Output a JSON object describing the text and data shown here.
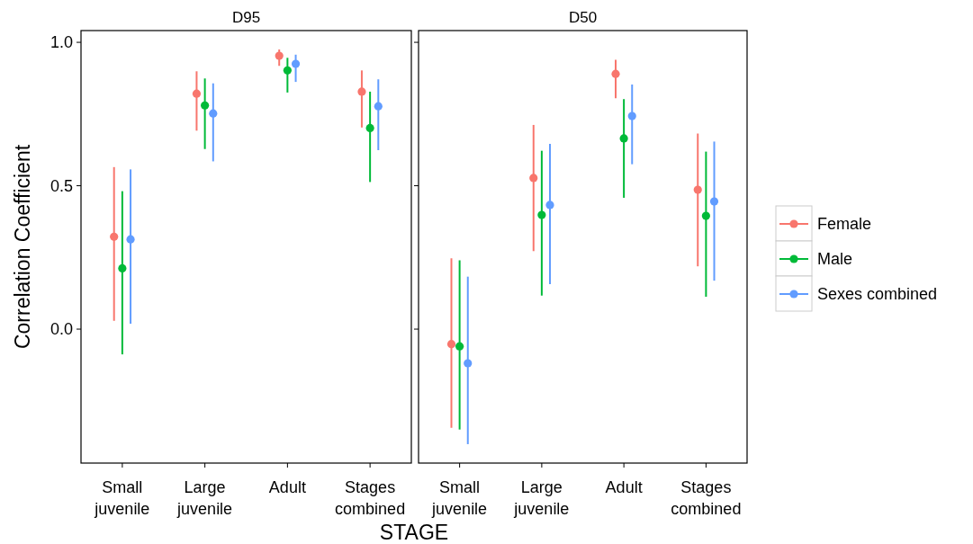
{
  "chart_data": [
    {
      "type": "scatter",
      "title": "D95",
      "xlabel": "STAGE",
      "ylabel": "Correlation Coefficient",
      "categories": [
        "Small juvenile",
        "Large juvenile",
        "Adult",
        "Stages combined"
      ],
      "ylim": [
        -0.467,
        1.041
      ],
      "yticks": [
        {
          "value": 0,
          "label": "0.0"
        },
        {
          "value": 0.5,
          "label": "0.5"
        },
        {
          "value": 1,
          "label": "1.0"
        }
      ],
      "grid": false,
      "legend": false,
      "marker": "circle",
      "series": [
        {
          "color": "#f8766d",
          "values": [
            0.322,
            0.821,
            0.953,
            0.828
          ],
          "errors": [
            [
              0.029,
              0.565
            ],
            [
              0.692,
              0.899
            ],
            [
              0.918,
              0.975
            ],
            [
              0.703,
              0.902
            ]
          ]
        },
        {
          "color": "#00ba38",
          "values": [
            0.212,
            0.78,
            0.902,
            0.701
          ],
          "errors": [
            [
              -0.088,
              0.481
            ],
            [
              0.628,
              0.874
            ],
            [
              0.825,
              0.946
            ],
            [
              0.513,
              0.828
            ]
          ]
        },
        {
          "color": "#619cff",
          "values": [
            0.313,
            0.752,
            0.925,
            0.777
          ],
          "errors": [
            [
              0.019,
              0.557
            ],
            [
              0.585,
              0.857
            ],
            [
              0.862,
              0.957
            ],
            [
              0.624,
              0.871
            ]
          ]
        }
      ]
    },
    {
      "type": "scatter",
      "title": "D50",
      "categories": [
        "Small juvenile",
        "Large juvenile",
        "Adult",
        "Stages combined"
      ],
      "ylim": [
        -0.467,
        1.041
      ],
      "yticks": [
        {
          "value": 0,
          "label": null
        },
        {
          "value": 0.5,
          "label": null
        },
        {
          "value": 1,
          "label": null
        }
      ],
      "tick_labels": "x",
      "grid": false,
      "legend": "right",
      "marker": "circle",
      "series": [
        {
          "name": "Female",
          "color": "#f8766d",
          "values": [
            -0.052,
            0.527,
            0.89,
            0.486
          ],
          "errors": [
            [
              -0.344,
              0.247
            ],
            [
              0.272,
              0.712
            ],
            [
              0.805,
              0.939
            ],
            [
              0.219,
              0.682
            ]
          ]
        },
        {
          "name": "Male",
          "color": "#00ba38",
          "values": [
            -0.06,
            0.398,
            0.665,
            0.395
          ],
          "errors": [
            [
              -0.35,
              0.24
            ],
            [
              0.117,
              0.622
            ],
            [
              0.458,
              0.802
            ],
            [
              0.113,
              0.619
            ]
          ]
        },
        {
          "name": "Sexes combined",
          "color": "#619cff",
          "values": [
            -0.119,
            0.433,
            0.743,
            0.445
          ],
          "errors": [
            [
              -0.401,
              0.183
            ],
            [
              0.157,
              0.646
            ],
            [
              0.575,
              0.853
            ],
            [
              0.169,
              0.654
            ]
          ]
        }
      ]
    }
  ]
}
